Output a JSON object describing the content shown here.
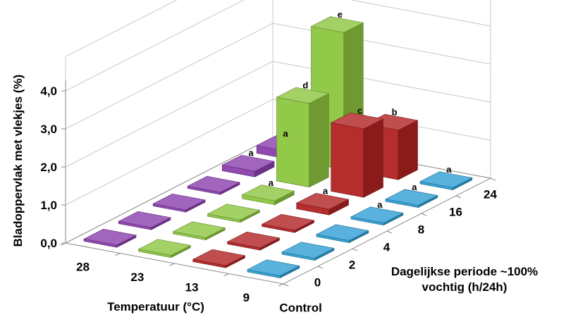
{
  "chart_data": {
    "type": "bar-3d",
    "title": "",
    "ylabel": "Bladoppervlak met vlekjes (%)",
    "xlabel": "Temperatuur (°C)",
    "zlabel": "Dagelijkse periode ~100% vochtig (h/24h)",
    "ylim": [
      0,
      5
    ],
    "y_ticks": [
      "0,0",
      "1,0",
      "2,0",
      "3,0",
      "4,0"
    ],
    "temperatures": [
      "28",
      "23",
      "13",
      "9",
      "Control"
    ],
    "periods": [
      "0",
      "2",
      "4",
      "8",
      "16",
      "24"
    ],
    "series": [
      {
        "name": "28",
        "color": "#8b3fae",
        "values": [
          0.0,
          0.0,
          0.0,
          0.0,
          0.15,
          0.2
        ]
      },
      {
        "name": "23",
        "color": "#8dc63f",
        "values": [
          0.0,
          0.0,
          0.0,
          0.1,
          2.2,
          3.6
        ]
      },
      {
        "name": "13",
        "color": "#b22222",
        "values": [
          0.0,
          0.0,
          0.0,
          0.15,
          1.8,
          1.3
        ]
      },
      {
        "name": "9",
        "color": "#2e9fd4",
        "values": [
          0.0,
          0.0,
          0.0,
          0.0,
          0.0,
          0.0
        ]
      }
    ],
    "significance_labels": [
      {
        "series": "28",
        "period": "16",
        "text": "a"
      },
      {
        "series": "28",
        "period": "24",
        "text": "a"
      },
      {
        "series": "23",
        "period": "8",
        "text": "a"
      },
      {
        "series": "23",
        "period": "16",
        "text": "d"
      },
      {
        "series": "23",
        "period": "24",
        "text": "e"
      },
      {
        "series": "13",
        "period": "8",
        "text": "a"
      },
      {
        "series": "13",
        "period": "16",
        "text": "c"
      },
      {
        "series": "13",
        "period": "24",
        "text": "b"
      },
      {
        "series": "9",
        "period": "8",
        "text": "a"
      },
      {
        "series": "9",
        "period": "16",
        "text": "a"
      },
      {
        "series": "9",
        "period": "24",
        "text": "a"
      }
    ]
  }
}
